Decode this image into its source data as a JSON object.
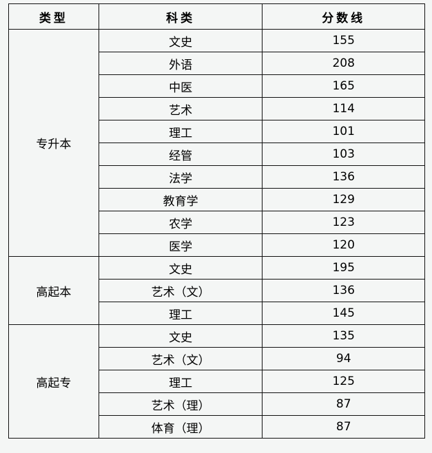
{
  "headers": [
    "类型",
    "科类",
    "分数线"
  ],
  "groups": [
    {
      "type": "专升本",
      "rows": [
        {
          "subject": "文史",
          "score": "155"
        },
        {
          "subject": "外语",
          "score": "208"
        },
        {
          "subject": "中医",
          "score": "165"
        },
        {
          "subject": "艺术",
          "score": "114"
        },
        {
          "subject": "理工",
          "score": "101"
        },
        {
          "subject": "经管",
          "score": "103"
        },
        {
          "subject": "法学",
          "score": "136"
        },
        {
          "subject": "教育学",
          "score": "129"
        },
        {
          "subject": "农学",
          "score": "123"
        },
        {
          "subject": "医学",
          "score": "120"
        }
      ]
    },
    {
      "type": "高起本",
      "rows": [
        {
          "subject": "文史",
          "score": "195"
        },
        {
          "subject": "艺术（文）",
          "score": "136"
        },
        {
          "subject": "理工",
          "score": "145"
        }
      ]
    },
    {
      "type": "高起专",
      "rows": [
        {
          "subject": "文史",
          "score": "135"
        },
        {
          "subject": "艺术（文）",
          "score": "94"
        },
        {
          "subject": "理工",
          "score": "125"
        },
        {
          "subject": "艺术（理）",
          "score": "87"
        },
        {
          "subject": "体育（理）",
          "score": "87"
        }
      ]
    }
  ]
}
